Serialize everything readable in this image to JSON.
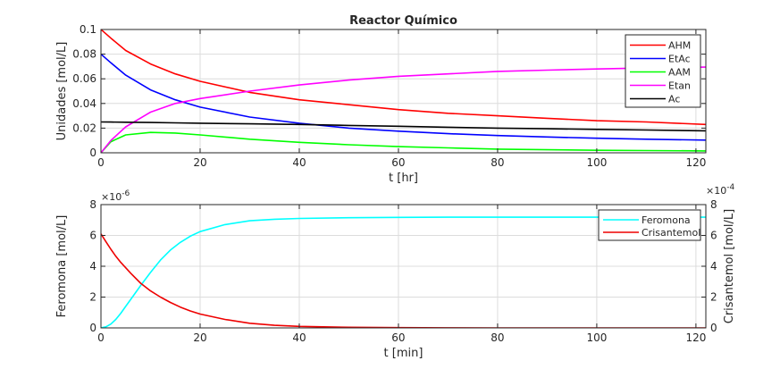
{
  "chart_data": [
    {
      "type": "line",
      "title": "Reactor Químico",
      "xlabel": "t [hr]",
      "ylabel": "Unidades [mol/L]",
      "xlim": [
        0,
        122
      ],
      "ylim": [
        0,
        0.1
      ],
      "xticks": [
        0,
        20,
        40,
        60,
        80,
        100,
        120
      ],
      "yticks": [
        0,
        0.02,
        0.04,
        0.06,
        0.08,
        0.1
      ],
      "xtick_labels": [
        "0",
        "20",
        "40",
        "60",
        "80",
        "100",
        "120"
      ],
      "ytick_labels": [
        "0",
        "0.02",
        "0.04",
        "0.06",
        "0.08",
        "0.1"
      ],
      "grid": true,
      "legend_position": "top-right",
      "x": [
        0,
        2,
        5,
        10,
        15,
        20,
        30,
        40,
        50,
        60,
        70,
        80,
        90,
        100,
        110,
        122
      ],
      "series": [
        {
          "name": "AHM",
          "color": "#ff0000",
          "values": [
            0.1,
            0.093,
            0.083,
            0.072,
            0.064,
            0.058,
            0.049,
            0.043,
            0.039,
            0.035,
            0.032,
            0.03,
            0.028,
            0.026,
            0.025,
            0.023
          ]
        },
        {
          "name": "EtAc",
          "color": "#0000ff",
          "values": [
            0.08,
            0.073,
            0.063,
            0.051,
            0.043,
            0.037,
            0.029,
            0.024,
            0.02,
            0.0175,
            0.0155,
            0.014,
            0.0128,
            0.0118,
            0.011,
            0.0103
          ]
        },
        {
          "name": "AAM",
          "color": "#00ff00",
          "values": [
            0,
            0.009,
            0.0145,
            0.0165,
            0.016,
            0.0145,
            0.011,
            0.0085,
            0.0065,
            0.005,
            0.004,
            0.003,
            0.0025,
            0.002,
            0.0018,
            0.0015
          ]
        },
        {
          "name": "Etan",
          "color": "#ff00ff",
          "values": [
            0,
            0.01,
            0.021,
            0.033,
            0.04,
            0.044,
            0.05,
            0.055,
            0.059,
            0.062,
            0.064,
            0.066,
            0.067,
            0.068,
            0.0688,
            0.0695
          ]
        },
        {
          "name": "Ac",
          "color": "#000000",
          "values": [
            0.025,
            0.0249,
            0.0248,
            0.0246,
            0.0243,
            0.024,
            0.0235,
            0.023,
            0.0222,
            0.0215,
            0.0207,
            0.02,
            0.0195,
            0.019,
            0.0185,
            0.0178
          ]
        }
      ]
    },
    {
      "type": "line",
      "title": "",
      "xlabel": "t [min]",
      "ylabel": "Feromona [mol/L]",
      "ylabel_right": "Crisantemol [mol/L]",
      "xlim": [
        0,
        122
      ],
      "ylim": [
        0,
        8e-06
      ],
      "ylim_right": [
        0,
        0.0008
      ],
      "xticks": [
        0,
        20,
        40,
        60,
        80,
        100,
        120
      ],
      "xtick_labels": [
        "0",
        "20",
        "40",
        "60",
        "80",
        "100",
        "120"
      ],
      "yticks": [
        0,
        2e-06,
        4e-06,
        6e-06,
        8e-06
      ],
      "ytick_labels": [
        "0",
        "2",
        "4",
        "6",
        "8"
      ],
      "ytick_labels_right": [
        "0",
        "2",
        "4",
        "6",
        "8"
      ],
      "y_exponent_label_left": "×10",
      "y_exponent_power_left": "-6",
      "y_exponent_label_right": "×10",
      "y_exponent_power_right": "-4",
      "grid": true,
      "legend_position": "top-right",
      "x": [
        0,
        1,
        2,
        3,
        4,
        5,
        6,
        8,
        10,
        12,
        14,
        16,
        18,
        20,
        25,
        30,
        35,
        40,
        50,
        60,
        70,
        80,
        90,
        100,
        110,
        122
      ],
      "series": [
        {
          "name": "Feromona",
          "color": "#00ffff",
          "axis": "left",
          "values": [
            0,
            7e-08,
            2.5e-07,
            5.5e-07,
            9.5e-07,
            1.4e-06,
            1.85e-06,
            2.75e-06,
            3.6e-06,
            4.4e-06,
            5.05e-06,
            5.55e-06,
            5.95e-06,
            6.25e-06,
            6.7e-06,
            6.95e-06,
            7.05e-06,
            7.1e-06,
            7.15e-06,
            7.17e-06,
            7.18e-06,
            7.18e-06,
            7.18e-06,
            7.18e-06,
            7.18e-06,
            7.18e-06
          ]
        },
        {
          "name": "Crisantemol",
          "color": "#ee0000",
          "axis": "right",
          "values": [
            0.00061,
            0.00056,
            0.00051,
            0.000465,
            0.000425,
            0.00039,
            0.000355,
            0.00029,
            0.00024,
            0.0002,
            0.000165,
            0.000135,
            0.00011,
            9e-05,
            5.5e-05,
            3e-05,
            1.7e-05,
            1e-05,
            4e-06,
            1.5e-06,
            5e-07,
            2e-07,
            1e-07,
            0,
            0,
            0
          ]
        }
      ]
    }
  ]
}
